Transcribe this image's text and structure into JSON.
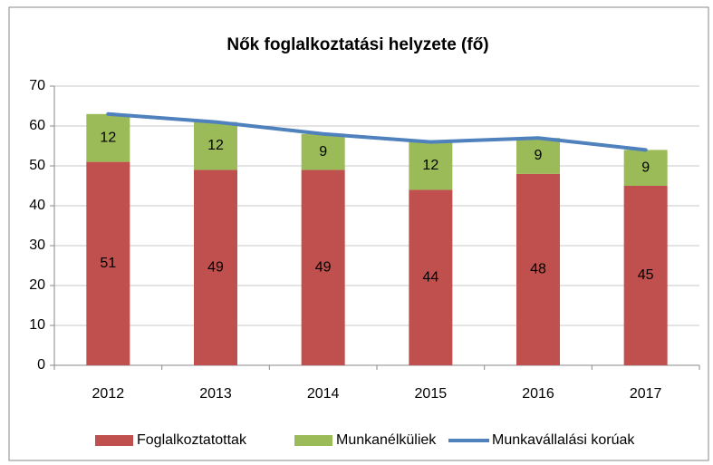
{
  "chart_data": {
    "type": "bar",
    "stacked": true,
    "title": "Nők foglalkoztatási helyzete (fő)",
    "categories": [
      "2012",
      "2013",
      "2014",
      "2015",
      "2016",
      "2017"
    ],
    "series": [
      {
        "name": "Foglalkoztatottak",
        "color": "#c0504d",
        "values": [
          51,
          49,
          49,
          44,
          48,
          45
        ]
      },
      {
        "name": "Munkanélküliek",
        "color": "#9bbb59",
        "values": [
          12,
          12,
          9,
          12,
          9,
          9
        ]
      },
      {
        "name": "Munkavállalási korúak",
        "type": "line",
        "color": "#4f81bd",
        "values": [
          63,
          61,
          58,
          56,
          57,
          54
        ]
      }
    ],
    "ylim": [
      0,
      70
    ],
    "yticks": [
      0,
      10,
      20,
      30,
      40,
      50,
      60,
      70
    ],
    "grid": true,
    "legend": "bottom"
  }
}
